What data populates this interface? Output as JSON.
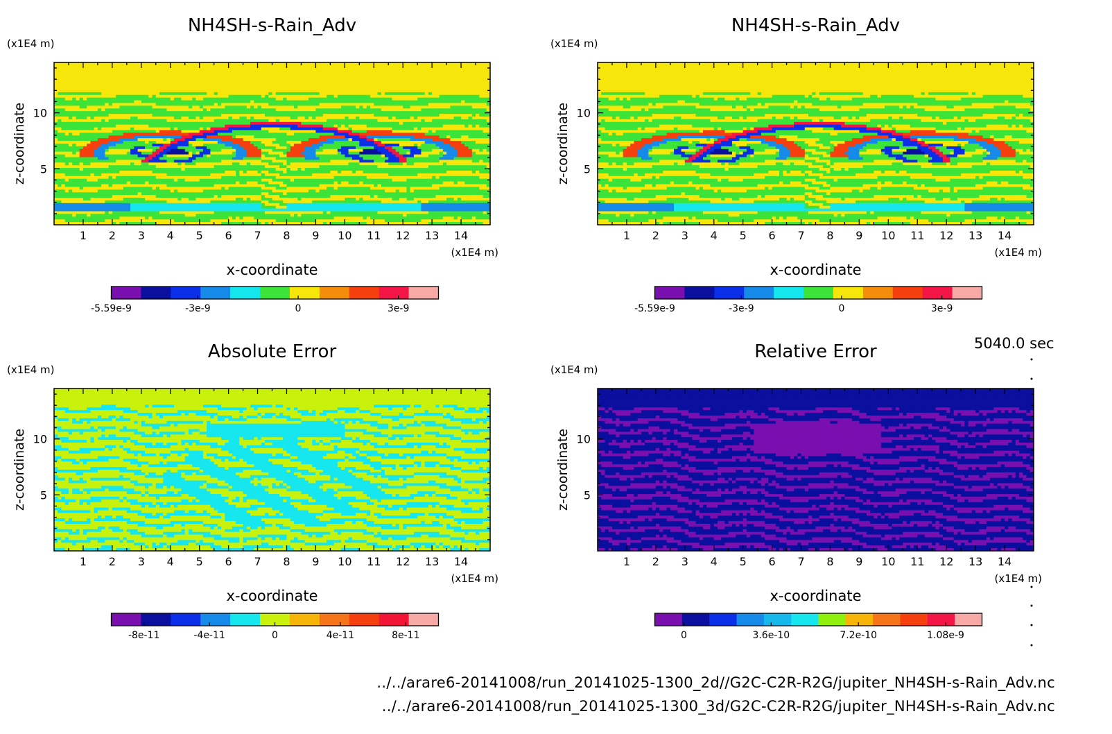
{
  "colors": {
    "original": [
      "#7a0fb0",
      "#0a0f9e",
      "#0b2fe8",
      "#168ae8",
      "#16e6ee",
      "#3ce43a",
      "#f6e60a",
      "#f58d0c",
      "#f5400e",
      "#f31545",
      "#f7a9a6"
    ],
    "abs": [
      "#7a0fb0",
      "#0a0f9e",
      "#0b2fe8",
      "#168ae8",
      "#16e6ee",
      "#c8f20c",
      "#f6b406",
      "#f5741a",
      "#f5400e",
      "#f31535",
      "#f7a9a6"
    ],
    "rel": [
      "#7a0fb0",
      "#0a0f9e",
      "#0b2fe8",
      "#168ae8",
      "#14b8ea",
      "#16e6ee",
      "#8ef00c",
      "#f6b406",
      "#f5741a",
      "#f5400e",
      "#f31545",
      "#f7a9a6"
    ]
  },
  "time_label": "5040.0 sec",
  "footer": {
    "file_2d": "../../arare6-20141008/run_20141025-1300_2d//G2C-C2R-R2G/jupiter_NH4SH-s-Rain_Adv.nc",
    "file_3d": "../../arare6-20141008/run_20141025-1300_3d/G2C-C2R-R2G/jupiter_NH4SH-s-Rain_Adv.nc"
  },
  "chart_data": [
    {
      "type": "heatmap",
      "title": "NH4SH-s-Rain_Adv",
      "xlabel": "x-coordinate",
      "ylabel": "z-coordinate",
      "xunit": "(x1E4 m)",
      "yunit": "(x1E4 m)",
      "xticks": [
        "1",
        "2",
        "3",
        "4",
        "5",
        "6",
        "7",
        "8",
        "9",
        "10",
        "11",
        "12",
        "13",
        "14"
      ],
      "yticks": [
        "5",
        "10"
      ],
      "xlim": [
        0,
        15
      ],
      "ylim": [
        0,
        14.5
      ],
      "colorbar_labels": [
        "-5.59e-9",
        "-3e-9",
        "0",
        "3e-9"
      ],
      "colorbar_range": [
        -5.59e-09,
        4.2e-09
      ],
      "palette": "original"
    },
    {
      "type": "heatmap",
      "title": "NH4SH-s-Rain_Adv",
      "xlabel": "x-coordinate",
      "ylabel": "z-coordinate",
      "xunit": "(x1E4 m)",
      "yunit": "(x1E4 m)",
      "xticks": [
        "1",
        "2",
        "3",
        "4",
        "5",
        "6",
        "7",
        "8",
        "9",
        "10",
        "11",
        "12",
        "13",
        "14"
      ],
      "yticks": [
        "5",
        "10"
      ],
      "xlim": [
        0,
        15
      ],
      "ylim": [
        0,
        14.5
      ],
      "colorbar_labels": [
        "-5.59e-9",
        "-3e-9",
        "0",
        "3e-9"
      ],
      "colorbar_range": [
        -5.59e-09,
        4.2e-09
      ],
      "palette": "original"
    },
    {
      "type": "heatmap",
      "title": "Absolute Error",
      "xlabel": "x-coordinate",
      "ylabel": "z-coordinate",
      "xunit": "(x1E4 m)",
      "yunit": "(x1E4 m)",
      "xticks": [
        "1",
        "2",
        "3",
        "4",
        "5",
        "6",
        "7",
        "8",
        "9",
        "10",
        "11",
        "12",
        "13",
        "14"
      ],
      "yticks": [
        "5",
        "10"
      ],
      "xlim": [
        0,
        15
      ],
      "ylim": [
        0,
        14.5
      ],
      "colorbar_labels": [
        "-8e-11",
        "-4e-11",
        "0",
        "4e-11",
        "8e-11"
      ],
      "colorbar_range": [
        -1e-10,
        1e-10
      ],
      "palette": "abs"
    },
    {
      "type": "heatmap",
      "title": "Relative Error",
      "xlabel": "x-coordinate",
      "ylabel": "z-coordinate",
      "xunit": "(x1E4 m)",
      "yunit": "(x1E4 m)",
      "xticks": [
        "1",
        "2",
        "3",
        "4",
        "5",
        "6",
        "7",
        "8",
        "9",
        "10",
        "11",
        "12",
        "13",
        "14"
      ],
      "yticks": [
        "5",
        "10"
      ],
      "xlim": [
        0,
        15
      ],
      "ylim": [
        0,
        14.5
      ],
      "colorbar_labels": [
        "0",
        "3.6e-10",
        "7.2e-10",
        "1.08e-9"
      ],
      "colorbar_range": [
        -1.2e-10,
        1.23e-09
      ],
      "palette": "rel"
    }
  ]
}
